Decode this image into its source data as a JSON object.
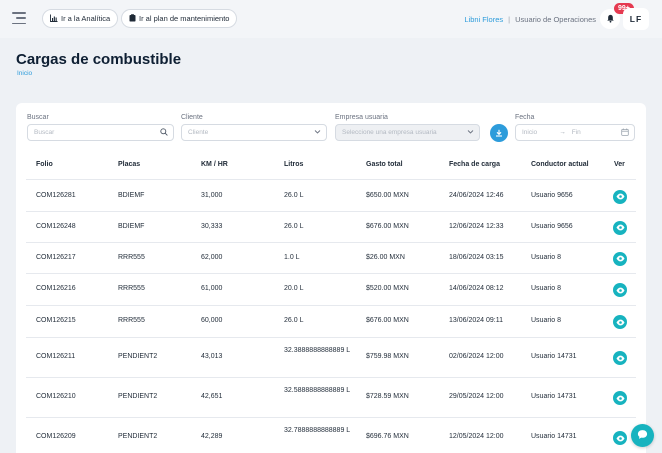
{
  "header": {
    "analytics_button": "Ir a la Analítica",
    "maintenance_button": "Ir al plan de mantenimiento",
    "user_name": "Libni Flores",
    "separator": "|",
    "user_role": "Usuario de Operaciones",
    "notification_count": "99+",
    "avatar_initials": "LF"
  },
  "page": {
    "title": "Cargas de combustible",
    "breadcrumb": "Inicio"
  },
  "filters": {
    "search_label": "Buscar",
    "search_placeholder": "Buscar",
    "client_label": "Cliente",
    "client_placeholder": "Cliente",
    "company_label": "Empresa usuaria",
    "company_placeholder": "Seleccione una empresa usuaria",
    "date_label": "Fecha",
    "date_start_placeholder": "Inicio",
    "date_arrow": "→",
    "date_end_placeholder": "Fin"
  },
  "table": {
    "headers": [
      "Folio",
      "Placas",
      "KM / HR",
      "Litros",
      "Gasto total",
      "Fecha de carga",
      "Conductor actual",
      "Ver"
    ],
    "rows": [
      {
        "folio": "COM126281",
        "placas": "BDIEMF",
        "km": "31,000",
        "litros": "26.0 L",
        "gasto": "$650.00 MXN",
        "fecha": "24/06/2024 12:46",
        "conductor": "Usuario 9656"
      },
      {
        "folio": "COM126248",
        "placas": "BDIEMF",
        "km": "30,333",
        "litros": "26.0 L",
        "gasto": "$676.00 MXN",
        "fecha": "12/06/2024 12:33",
        "conductor": "Usuario 9656"
      },
      {
        "folio": "COM126217",
        "placas": "RRR555",
        "km": "62,000",
        "litros": "1.0 L",
        "gasto": "$26.00 MXN",
        "fecha": "18/06/2024 03:15",
        "conductor": "Usuario 8"
      },
      {
        "folio": "COM126216",
        "placas": "RRR555",
        "km": "61,000",
        "litros": "20.0 L",
        "gasto": "$520.00 MXN",
        "fecha": "14/06/2024 08:12",
        "conductor": "Usuario 8"
      },
      {
        "folio": "COM126215",
        "placas": "RRR555",
        "km": "60,000",
        "litros": "26.0 L",
        "gasto": "$676.00 MXN",
        "fecha": "13/06/2024 09:11",
        "conductor": "Usuario 8"
      },
      {
        "folio": "COM126211",
        "placas": "PENDIENT2",
        "km": "43,013",
        "litros": "32.3888888888889 L",
        "gasto": "$759.98 MXN",
        "fecha": "02/06/2024 12:00",
        "conductor": "Usuario 14731"
      },
      {
        "folio": "COM126210",
        "placas": "PENDIENT2",
        "km": "42,651",
        "litros": "32.5888888888889 L",
        "gasto": "$728.59 MXN",
        "fecha": "29/05/2024 12:00",
        "conductor": "Usuario 14731"
      },
      {
        "folio": "COM126209",
        "placas": "PENDIENT2",
        "km": "42,289",
        "litros": "32.7888888888889 L",
        "gasto": "$696.76 MXN",
        "fecha": "12/05/2024 12:00",
        "conductor": "Usuario 14731"
      }
    ]
  },
  "colors": {
    "accent": "#2d9cdb",
    "eye_button": "#17b3bf",
    "badge": "#e53950"
  }
}
